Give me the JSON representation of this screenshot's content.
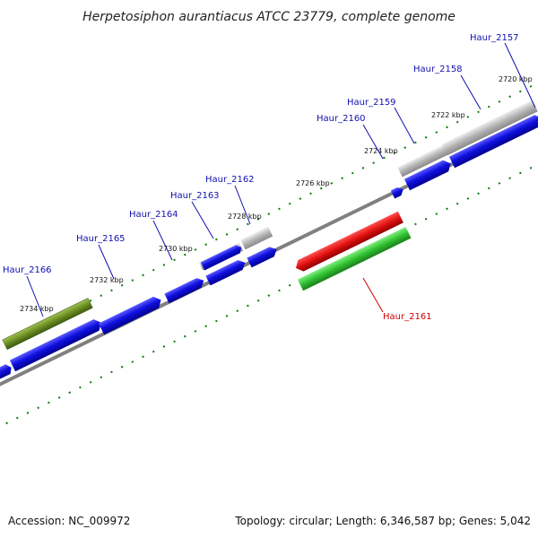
{
  "title": "Herpetosiphon aurantiacus ATCC 23779, complete genome",
  "footer": {
    "accession": "Accession: NC_009972",
    "topology": "Topology: circular; Length: 6,346,587 bp; Genes: 5,042"
  },
  "kbp_labels": [
    "2720 kbp",
    "2722 kbp",
    "2724 kbp",
    "2726 kbp",
    "2728 kbp",
    "2730 kbp",
    "2732 kbp",
    "2734 kbp"
  ],
  "gene_labels": [
    "Haur_2157",
    "Haur_2158",
    "Haur_2159",
    "Haur_2160",
    "Haur_2161",
    "Haur_2162",
    "Haur_2163",
    "Haur_2164",
    "Haur_2165",
    "Haur_2166"
  ],
  "colors": {
    "blue_gene": "#1010e0",
    "gray_gene": "#b4b4b4",
    "red_gene": "#e01010",
    "green_gene": "#30c030",
    "olive_gene": "#6b8e23",
    "backbone": "#808080",
    "tick": "#0a7a0a"
  }
}
